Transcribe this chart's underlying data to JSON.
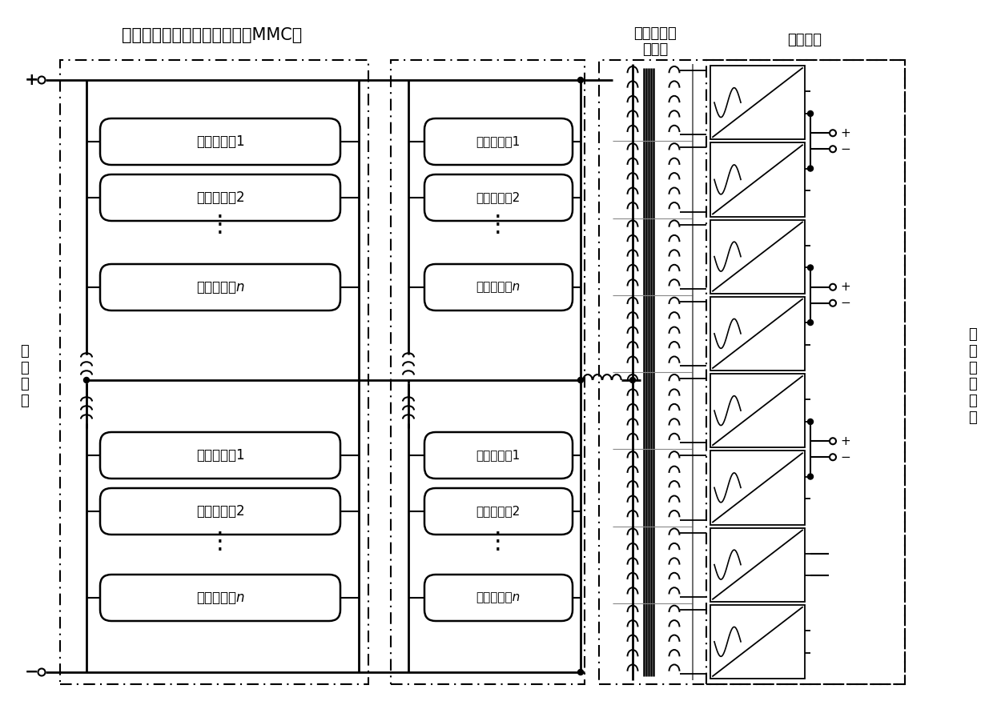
{
  "title_mmc": "储能型模块化多电平变换器（MMC）",
  "label_tr_line1": "多绕组高频",
  "label_tr_line2": "变压器",
  "label_rect": "整流单元",
  "label_hv": "高\n压\n直\n流",
  "label_lv": "多\n路\n低\n压\n直\n流",
  "modules": [
    "储能子模块1",
    "储能子模块2",
    "储能子模块n"
  ],
  "bg_color": "#ffffff",
  "fig_w": 12.4,
  "fig_h": 8.86,
  "dpi": 100
}
